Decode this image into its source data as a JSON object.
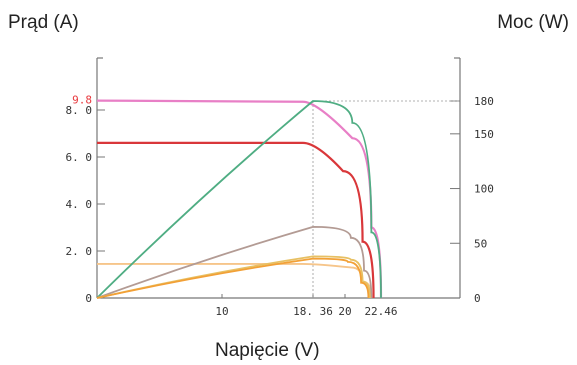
{
  "chart_data": {
    "type": "line",
    "xlabel": "Napięcie (V)",
    "ylabel_left": "Prąd (A)",
    "ylabel_right": "Moc (W)",
    "x_ticks": [
      10,
      18.36,
      20,
      22.46
    ],
    "x_tick_labels": [
      "10",
      "18. 36",
      "20",
      "22.46"
    ],
    "y_left_ticks": [
      0,
      2,
      4,
      6,
      8
    ],
    "y_left_tick_labels": [
      "0",
      "2. 0",
      "4. 0",
      "6. 0",
      "8. 0"
    ],
    "y_right_ticks": [
      0,
      50,
      100,
      150,
      180
    ],
    "y_right_tick_labels": [
      "0",
      "50",
      "100",
      "150",
      "180"
    ],
    "annotations": [
      {
        "text": "9.8",
        "color": "#e8383d"
      }
    ],
    "series": [
      {
        "axis": "left",
        "color": "#e87fc6",
        "x": [
          0,
          18.36,
          20.5,
          21.8,
          22.46
        ],
        "y": [
          8.4,
          8.35,
          6.8,
          3.0,
          0
        ]
      },
      {
        "axis": "left",
        "color": "#d9373a",
        "x": [
          0,
          18.36,
          19.9,
          21.2,
          21.95
        ],
        "y": [
          6.6,
          6.6,
          5.4,
          2.4,
          0
        ]
      },
      {
        "axis": "left",
        "color": "#f6c58a",
        "x": [
          0,
          18.36,
          20.4,
          21.2,
          21.8
        ],
        "y": [
          1.45,
          1.45,
          1.3,
          0.7,
          0
        ]
      },
      {
        "axis": "right",
        "color": "#4fad83",
        "x": [
          0,
          18.36,
          20.5,
          21.8,
          22.46
        ],
        "y": [
          0,
          180,
          160,
          60,
          0
        ]
      },
      {
        "axis": "right",
        "color": "#b39b94",
        "x": [
          0,
          18.36,
          20.4,
          21.3,
          21.8
        ],
        "y": [
          0,
          65,
          55,
          25,
          0
        ]
      },
      {
        "axis": "right",
        "color": "#e7c063",
        "x": [
          0,
          18.36,
          20.4,
          21.2,
          21.7
        ],
        "y": [
          0,
          38,
          35,
          15,
          0
        ]
      },
      {
        "axis": "right",
        "color": "#f2a036",
        "x": [
          0,
          18.36,
          20.2,
          21.1,
          21.6
        ],
        "y": [
          0,
          36,
          33,
          14,
          0
        ]
      }
    ],
    "xlim": [
      0,
      25
    ],
    "ylim_left": [
      0,
      9.5
    ],
    "ylim_right": [
      0,
      200
    ]
  }
}
